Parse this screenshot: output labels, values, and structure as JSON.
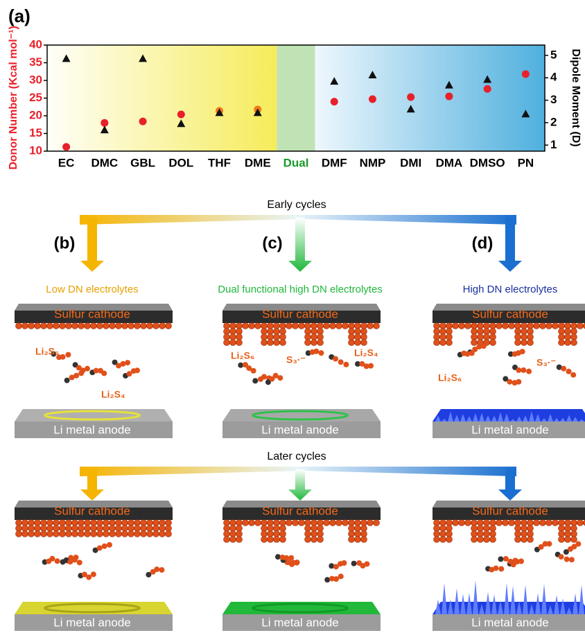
{
  "chart_data": {
    "type": "scatter",
    "panel_label": "(a)",
    "y_label": "Donor Number (Kcal mol⁻¹)",
    "y2_label": "Dipole Moment (D)",
    "categories": [
      "EC",
      "DMC",
      "GBL",
      "DOL",
      "THF",
      "DME",
      "Dual",
      "DMF",
      "NMP",
      "DMI",
      "DMA",
      "DMSO",
      "PN"
    ],
    "ylim": [
      10,
      40
    ],
    "yticks": [
      10,
      15,
      20,
      25,
      30,
      35,
      40
    ],
    "y2lim": [
      0.73,
      5.46
    ],
    "y2ticks": [
      1,
      2,
      3,
      4,
      5
    ],
    "series": [
      {
        "marker": "circle",
        "color": "#e8202a",
        "colors": [
          "#e8202a",
          "#e8202a",
          "#e8202a",
          "#e8202a",
          "#f07a1a",
          "#f07a1a",
          null,
          "#e8202a",
          "#e8202a",
          "#e8202a",
          "#e8202a",
          "#e8202a",
          "#e8202a"
        ],
        "values": [
          11.2,
          18,
          18.4,
          20.4,
          21.4,
          21.8,
          null,
          24,
          24.7,
          25.3,
          25.5,
          27.6,
          31.8
        ]
      },
      {
        "marker": "triangle",
        "color": "#111111",
        "axis": "y2",
        "values": [
          4.86,
          1.68,
          4.86,
          1.96,
          2.45,
          2.45,
          null,
          3.85,
          4.13,
          2.61,
          3.68,
          3.93,
          2.39
        ]
      }
    ]
  },
  "diagram": {
    "early_label": "Early cycles",
    "later_label": "Later cycles",
    "columns": [
      {
        "label": "(b)",
        "title": "Low DN electrolytes"
      },
      {
        "label": "(c)",
        "title": "Dual functional high DN electrolytes"
      },
      {
        "label": "(d)",
        "title": "High DN electrolytes"
      }
    ],
    "panels": [
      {
        "cathode": "Sulfur cathode",
        "anode": "Li metal anode",
        "species": [
          "Li₂S₆",
          "Li₂S₄"
        ]
      },
      {
        "cathode": "Sulfur cathode",
        "anode": "Li metal anode",
        "species": [
          "Li₂S₆",
          "S₃·⁻",
          "Li₂S₄"
        ]
      },
      {
        "cathode": "Sulfur cathode",
        "anode": "Li metal anode",
        "species": [
          "Li₂S₆",
          "S₃·⁻"
        ]
      },
      {
        "cathode": "Sulfur cathode",
        "anode": "Li metal anode",
        "species": []
      },
      {
        "cathode": "Sulfur cathode",
        "anode": "Li metal anode",
        "species": []
      },
      {
        "cathode": "Sulfur cathode",
        "anode": "Li metal anode",
        "species": []
      }
    ]
  }
}
